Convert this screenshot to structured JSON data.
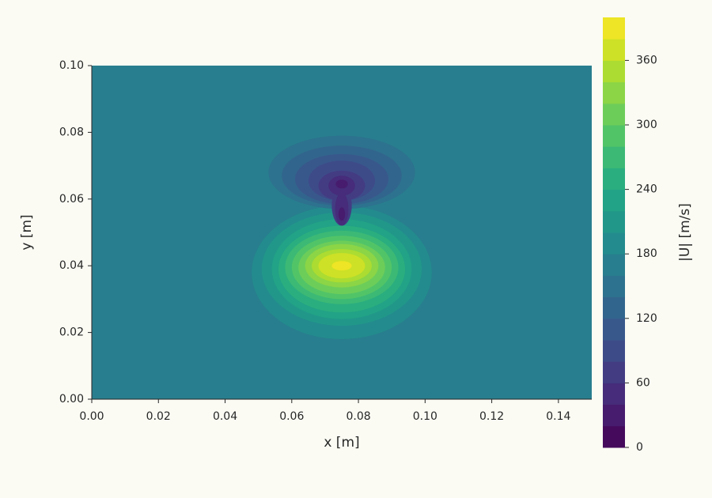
{
  "chart_data": {
    "type": "contour",
    "xlabel": "x [m]",
    "ylabel": "y [m]",
    "colorbar_label": "|U| [m/s]",
    "cmap": "viridis",
    "xlim": [
      0,
      0.15
    ],
    "ylim": [
      0,
      0.1
    ],
    "xticks": [
      {
        "value": 0,
        "label": "0.00"
      },
      {
        "value": 0.02,
        "label": "0.02"
      },
      {
        "value": 0.04,
        "label": "0.04"
      },
      {
        "value": 0.06,
        "label": "0.06"
      },
      {
        "value": 0.08,
        "label": "0.08"
      },
      {
        "value": 0.1,
        "label": "0.10"
      },
      {
        "value": 0.12,
        "label": "0.12"
      },
      {
        "value": 0.14,
        "label": "0.14"
      }
    ],
    "yticks": [
      {
        "value": 0,
        "label": "0.00"
      },
      {
        "value": 0.02,
        "label": "0.02"
      },
      {
        "value": 0.04,
        "label": "0.04"
      },
      {
        "value": 0.06,
        "label": "0.06"
      },
      {
        "value": 0.08,
        "label": "0.08"
      },
      {
        "value": 0.1,
        "label": "0.10"
      }
    ],
    "levels": [
      0,
      20,
      40,
      60,
      80,
      100,
      120,
      140,
      160,
      180,
      200,
      220,
      240,
      260,
      280,
      300,
      320,
      340,
      360,
      380,
      400
    ],
    "colorbar_ticks": [
      0,
      60,
      120,
      180,
      240,
      300,
      360
    ],
    "background_level": 160,
    "regions": [
      {
        "level": 180,
        "cx": 0.075,
        "cy": 0.038,
        "rx": 0.027,
        "ry": 0.02
      },
      {
        "level": 200,
        "cx": 0.075,
        "cy": 0.039,
        "rx": 0.024,
        "ry": 0.017
      },
      {
        "level": 220,
        "cx": 0.075,
        "cy": 0.039,
        "rx": 0.021,
        "ry": 0.015
      },
      {
        "level": 240,
        "cx": 0.075,
        "cy": 0.039,
        "rx": 0.019,
        "ry": 0.013
      },
      {
        "level": 260,
        "cx": 0.075,
        "cy": 0.0395,
        "rx": 0.017,
        "ry": 0.011
      },
      {
        "level": 280,
        "cx": 0.075,
        "cy": 0.0395,
        "rx": 0.015,
        "ry": 0.0095
      },
      {
        "level": 300,
        "cx": 0.075,
        "cy": 0.0395,
        "rx": 0.013,
        "ry": 0.008
      },
      {
        "level": 320,
        "cx": 0.075,
        "cy": 0.04,
        "rx": 0.011,
        "ry": 0.0065
      },
      {
        "level": 340,
        "cx": 0.075,
        "cy": 0.04,
        "rx": 0.009,
        "ry": 0.005
      },
      {
        "level": 360,
        "cx": 0.075,
        "cy": 0.04,
        "rx": 0.007,
        "ry": 0.0038
      },
      {
        "level": 380,
        "cx": 0.075,
        "cy": 0.04,
        "rx": 0.003,
        "ry": 0.0014
      },
      {
        "level": 140,
        "cx": 0.075,
        "cy": 0.068,
        "rx": 0.022,
        "ry": 0.011
      },
      {
        "level": 120,
        "cx": 0.075,
        "cy": 0.067,
        "rx": 0.018,
        "ry": 0.009
      },
      {
        "level": 100,
        "cx": 0.075,
        "cy": 0.066,
        "rx": 0.014,
        "ry": 0.0075
      },
      {
        "level": 80,
        "cx": 0.075,
        "cy": 0.0655,
        "rx": 0.01,
        "ry": 0.006
      },
      {
        "level": 60,
        "cx": 0.075,
        "cy": 0.064,
        "rx": 0.007,
        "ry": 0.0045
      },
      {
        "level": 60,
        "cx": 0.075,
        "cy": 0.058,
        "rx": 0.003,
        "ry": 0.006
      },
      {
        "level": 40,
        "cx": 0.075,
        "cy": 0.064,
        "rx": 0.004,
        "ry": 0.003
      },
      {
        "level": 40,
        "cx": 0.075,
        "cy": 0.057,
        "rx": 0.002,
        "ry": 0.005
      },
      {
        "level": 20,
        "cx": 0.075,
        "cy": 0.0645,
        "rx": 0.0018,
        "ry": 0.0013
      },
      {
        "level": 20,
        "cx": 0.075,
        "cy": 0.0555,
        "rx": 0.001,
        "ry": 0.002
      }
    ]
  }
}
